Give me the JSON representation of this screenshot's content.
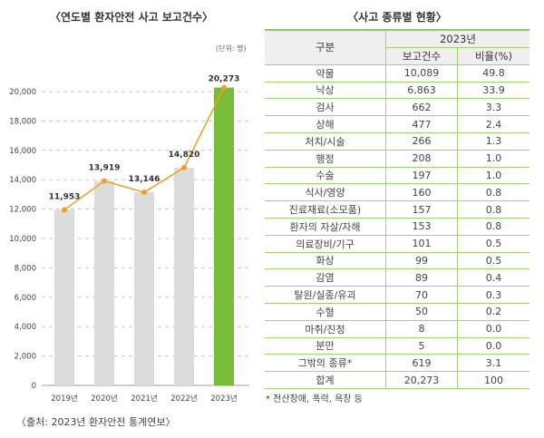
{
  "chart_data": {
    "type": "bar",
    "title": "〈연도별 환자안전 사고 보고건수〉",
    "unit": "(단위: 명)",
    "categories": [
      "2019년",
      "2020년",
      "2021년",
      "2022년",
      "2023년"
    ],
    "values": [
      11953,
      13919,
      13146,
      14820,
      20273
    ],
    "data_labels": [
      "11,953",
      "13,919",
      "13,146",
      "14,820",
      "20,273"
    ],
    "overlay_line": true,
    "ylim": [
      0,
      20000
    ],
    "yticks": [
      0,
      2000,
      4000,
      6000,
      8000,
      10000,
      12000,
      14000,
      16000,
      18000,
      20000
    ],
    "ytick_labels": [
      "0",
      "2,000",
      "4,000",
      "6,000",
      "8,000",
      "10,000",
      "12,000",
      "14,000",
      "16,000",
      "18,000",
      "20,000"
    ],
    "grid": true,
    "colors": {
      "bar": "#dcdcdc",
      "highlight": "#79bc3a",
      "line": "#f0a020"
    },
    "source": "〈출처: 2023년 환자안전 통계연보〉"
  },
  "table": {
    "title": "〈사고 종류별 현황〉",
    "header_category": "구분",
    "header_year": "2023년",
    "header_count": "보고건수",
    "header_ratio": "비율(%)",
    "rows": [
      [
        "약물",
        "10,089",
        "49.8"
      ],
      [
        "낙상",
        "6,863",
        "33.9"
      ],
      [
        "검사",
        "662",
        "3.3"
      ],
      [
        "상해",
        "477",
        "2.4"
      ],
      [
        "처치/시술",
        "266",
        "1.3"
      ],
      [
        "행정",
        "208",
        "1.0"
      ],
      [
        "수술",
        "197",
        "1.0"
      ],
      [
        "식사/영양",
        "160",
        "0.8"
      ],
      [
        "진료재료(소모품)",
        "157",
        "0.8"
      ],
      [
        "환자의 자살/자해",
        "153",
        "0.8"
      ],
      [
        "의료장비/기구",
        "101",
        "0.5"
      ],
      [
        "화상",
        "99",
        "0.5"
      ],
      [
        "감염",
        "89",
        "0.4"
      ],
      [
        "탈원/실종/유괴",
        "70",
        "0.3"
      ],
      [
        "수혈",
        "50",
        "0.2"
      ],
      [
        "마취/진정",
        "8",
        "0.0"
      ],
      [
        "분만",
        "5",
        "0.0"
      ],
      [
        "그밖의 종류*",
        "619",
        "3.1"
      ],
      [
        "합계",
        "20,273",
        "100"
      ]
    ],
    "footnote": "* 전산장애, 폭력, 욕창 등"
  }
}
